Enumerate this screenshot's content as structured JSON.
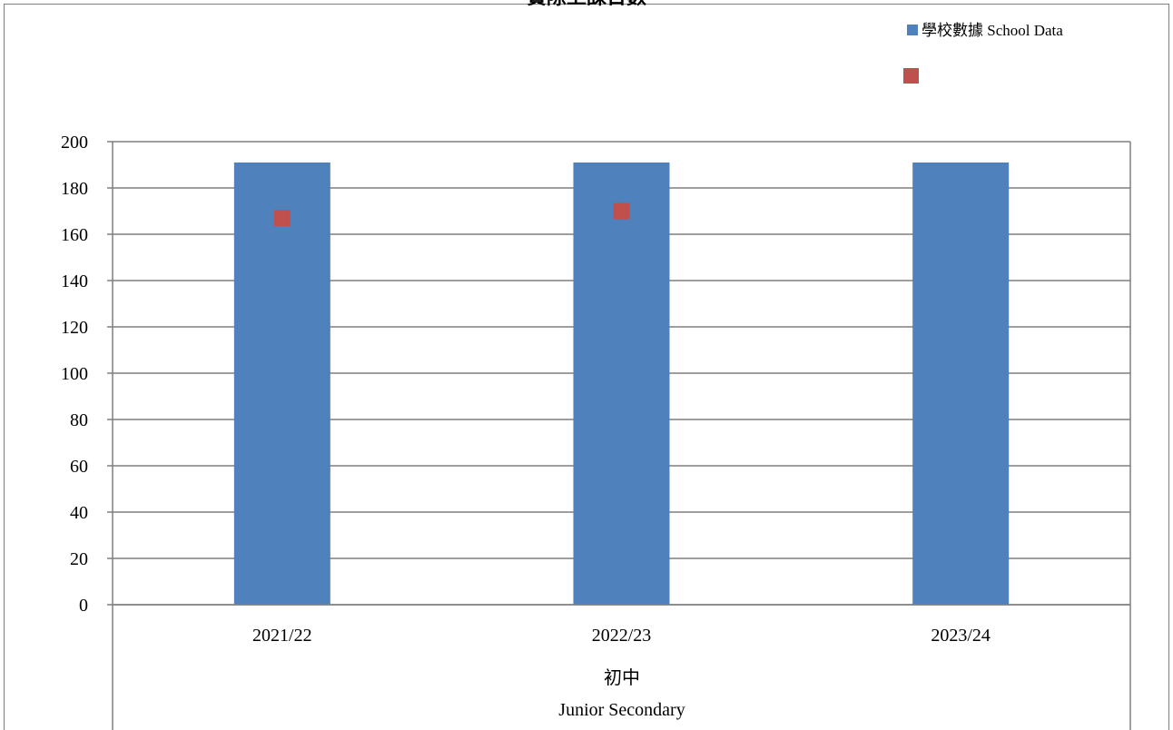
{
  "chart_data": {
    "type": "bar",
    "title": "實際上課日數",
    "categories": [
      "2021/22",
      "2022/23",
      "2023/24"
    ],
    "group_label_zh": "初中",
    "group_label_en": "Junior Secondary",
    "ylim": [
      0,
      200
    ],
    "y_ticks": [
      0,
      20,
      40,
      60,
      80,
      100,
      120,
      140,
      160,
      180,
      200
    ],
    "grid": true,
    "legend_position": "top-right",
    "series": [
      {
        "name": "學校數據 School Data",
        "kind": "bar",
        "color": "#4F81BD",
        "values": [
          191,
          191,
          191
        ]
      },
      {
        "name": "",
        "kind": "marker",
        "color": "#C0504D",
        "values": [
          167,
          170,
          null
        ]
      }
    ]
  }
}
